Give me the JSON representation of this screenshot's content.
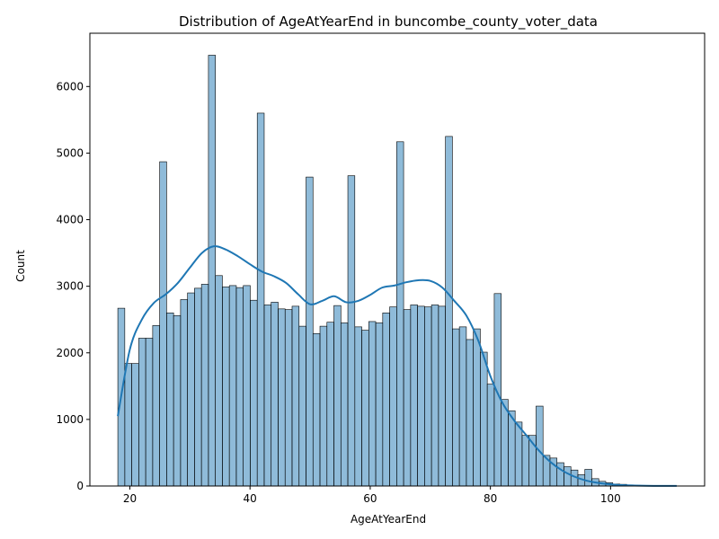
{
  "chart_data": {
    "type": "bar",
    "title": "Distribution of AgeAtYearEnd in buncombe_county_voter_data",
    "xlabel": "AgeAtYearEnd",
    "ylabel": "Count",
    "xlim": [
      13.35,
      115.65
    ],
    "ylim": [
      0,
      6800
    ],
    "x_ticks": [
      20,
      40,
      60,
      80,
      100
    ],
    "y_ticks": [
      0,
      1000,
      2000,
      3000,
      4000,
      5000,
      6000
    ],
    "grid": false,
    "bin_start": 18,
    "bin_width": 1.16,
    "bar_color": "#1f77b4",
    "bar_alpha": 0.5,
    "kde_color": "#1f77b4",
    "values": [
      2670,
      1840,
      1840,
      2220,
      2220,
      2410,
      4870,
      2600,
      2560,
      2800,
      2900,
      2970,
      3030,
      6470,
      3160,
      2990,
      3010,
      2980,
      3010,
      2790,
      5600,
      2720,
      2760,
      2660,
      2650,
      2700,
      2400,
      4640,
      2290,
      2400,
      2460,
      2710,
      2450,
      4660,
      2390,
      2340,
      2470,
      2450,
      2600,
      2690,
      5170,
      2650,
      2720,
      2700,
      2690,
      2720,
      2700,
      5250,
      2360,
      2390,
      2200,
      2360,
      2010,
      1530,
      2890,
      1300,
      1130,
      960,
      760,
      760,
      1200,
      460,
      420,
      350,
      290,
      240,
      170,
      250,
      110,
      70,
      50,
      30,
      25,
      15,
      10,
      6,
      4,
      3,
      2,
      1
    ],
    "kde": {
      "x": [
        18,
        20,
        22,
        24,
        26,
        28,
        30,
        32,
        34,
        36,
        38,
        40,
        42,
        44,
        46,
        48,
        50,
        52,
        54,
        56,
        58,
        60,
        62,
        64,
        66,
        68,
        70,
        72,
        74,
        76,
        78,
        80,
        82,
        84,
        86,
        88,
        90,
        92,
        94,
        96,
        98,
        100,
        102,
        104,
        106,
        108,
        110,
        111
      ],
      "y": [
        1050,
        2050,
        2500,
        2750,
        2880,
        3050,
        3280,
        3500,
        3600,
        3550,
        3450,
        3330,
        3220,
        3150,
        3050,
        2880,
        2730,
        2780,
        2850,
        2760,
        2780,
        2870,
        2980,
        3010,
        3060,
        3090,
        3080,
        2980,
        2780,
        2560,
        2180,
        1650,
        1250,
        980,
        760,
        540,
        360,
        230,
        140,
        80,
        45,
        25,
        13,
        7,
        3,
        2,
        1,
        1
      ]
    }
  }
}
